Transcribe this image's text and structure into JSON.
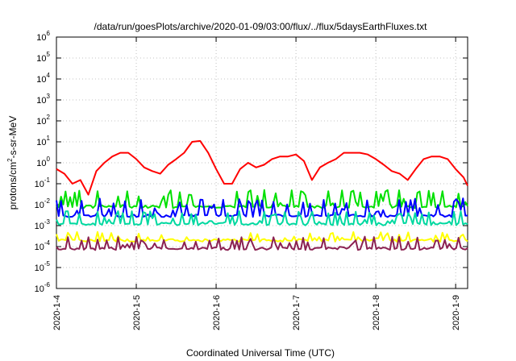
{
  "chart_data": {
    "type": "line",
    "title": "/data/run/goesPlots/archive/2020-01-09/03:00/flux/../flux/5daysEarthFluxes.txt",
    "xlabel": "Coordinated Universal Time (UTC)",
    "ylabel": {
      "base": "protons/cm",
      "exp": "2",
      "rest": "-s-sr-MeV"
    },
    "y_scale": "log",
    "ylim": [
      1e-06,
      1000000.0
    ],
    "y_ticks": [
      {
        "base": "10",
        "exp": "-6",
        "value": 1e-06
      },
      {
        "base": "10",
        "exp": "-5",
        "value": 1e-05
      },
      {
        "base": "10",
        "exp": "-4",
        "value": 0.0001
      },
      {
        "base": "10",
        "exp": "-3",
        "value": 0.001
      },
      {
        "base": "10",
        "exp": "-2",
        "value": 0.01
      },
      {
        "base": "10",
        "exp": "-1",
        "value": 0.1
      },
      {
        "base": "10",
        "exp": "0",
        "value": 1
      },
      {
        "base": "10",
        "exp": "1",
        "value": 10
      },
      {
        "base": "10",
        "exp": "2",
        "value": 100
      },
      {
        "base": "10",
        "exp": "3",
        "value": 1000
      },
      {
        "base": "10",
        "exp": "4",
        "value": 10000
      },
      {
        "base": "10",
        "exp": "5",
        "value": 100000
      },
      {
        "base": "10",
        "exp": "6",
        "value": 1000000
      }
    ],
    "x_range_days": [
      0,
      5.15
    ],
    "x_ticks": [
      {
        "label": "2020-1-4",
        "day": 0
      },
      {
        "label": "2020-1-5",
        "day": 1
      },
      {
        "label": "2020-1-6",
        "day": 2
      },
      {
        "label": "2020-1-7",
        "day": 3
      },
      {
        "label": "2020-1-8",
        "day": 4
      },
      {
        "label": "2020-1-9",
        "day": 5
      }
    ],
    "grid": true,
    "series": [
      {
        "color": "#ff0000",
        "x": [
          0,
          0.1,
          0.2,
          0.3,
          0.4,
          0.5,
          0.6,
          0.7,
          0.8,
          0.9,
          1.0,
          1.1,
          1.2,
          1.3,
          1.4,
          1.5,
          1.6,
          1.7,
          1.8,
          1.9,
          2.0,
          2.1,
          2.2,
          2.3,
          2.4,
          2.5,
          2.6,
          2.7,
          2.8,
          2.9,
          3.0,
          3.1,
          3.2,
          3.3,
          3.4,
          3.5,
          3.6,
          3.7,
          3.8,
          3.9,
          4.0,
          4.1,
          4.2,
          4.3,
          4.4,
          4.5,
          4.6,
          4.7,
          4.8,
          4.9,
          5.0,
          5.1,
          5.15
        ],
        "y": [
          0.5,
          0.3,
          0.1,
          0.15,
          0.03,
          0.4,
          1.0,
          2.0,
          3.0,
          3.0,
          1.5,
          0.6,
          0.4,
          0.3,
          0.8,
          1.5,
          3.0,
          10,
          11,
          3.0,
          0.5,
          0.1,
          0.1,
          0.5,
          1.0,
          0.6,
          0.8,
          1.5,
          2.0,
          2.0,
          2.5,
          1.2,
          0.15,
          0.6,
          1.0,
          1.5,
          3.0,
          3.0,
          3.0,
          2.5,
          1.5,
          0.8,
          0.4,
          0.3,
          0.15,
          0.5,
          1.5,
          2.0,
          2.0,
          1.5,
          0.5,
          0.2,
          0.08
        ]
      },
      {
        "color": "#00e000",
        "base": 0.008,
        "high": 0.05
      },
      {
        "color": "#0000ff",
        "base": 0.003,
        "high": 0.02
      },
      {
        "color": "#00d8a0",
        "base": 0.0012,
        "high": 0.005
      },
      {
        "color": "#ffff00",
        "base": 0.0002,
        "high": 0.0005
      },
      {
        "color": "#8b2252",
        "base": 8e-05,
        "high": 0.0003
      }
    ]
  }
}
